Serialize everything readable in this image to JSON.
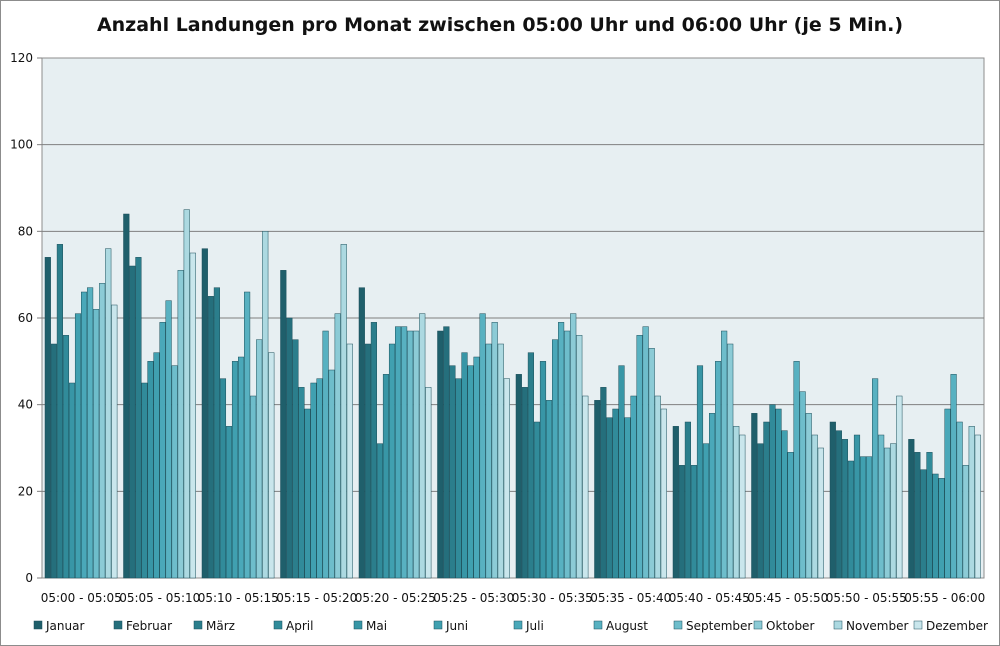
{
  "chart_data": {
    "type": "bar",
    "title": "Anzahl Landungen pro Monat zwischen 05:00 Uhr und 06:00 Uhr (je 5 Min.)",
    "xlabel": "",
    "ylabel": "",
    "ylim": [
      0,
      120
    ],
    "yticks": [
      0,
      20,
      40,
      60,
      80,
      100,
      120
    ],
    "grid": true,
    "legend_position": "bottom",
    "categories": [
      "05:00 - 05:05",
      "05:05 - 05:10",
      "05:10 - 05:15",
      "05:15 - 05:20",
      "05:20 - 05:25",
      "05:25 - 05:30",
      "05:30 - 05:35",
      "05:35 - 05:40",
      "05:40 - 05:45",
      "05:45 - 05:50",
      "05:50 - 05:55",
      "05:55 - 06:00"
    ],
    "series": [
      {
        "name": "Januar",
        "color": "#1f5f6b",
        "values": [
          74,
          84,
          76,
          71,
          67,
          57,
          47,
          41,
          35,
          38,
          36,
          32
        ]
      },
      {
        "name": "Februar",
        "color": "#256f7c",
        "values": [
          54,
          72,
          65,
          60,
          54,
          58,
          44,
          44,
          26,
          31,
          34,
          29
        ]
      },
      {
        "name": "März",
        "color": "#2b7e8c",
        "values": [
          77,
          74,
          67,
          55,
          59,
          49,
          52,
          37,
          36,
          36,
          32,
          25
        ]
      },
      {
        "name": "April",
        "color": "#318b9a",
        "values": [
          56,
          45,
          46,
          44,
          31,
          46,
          36,
          39,
          26,
          40,
          27,
          29
        ]
      },
      {
        "name": "Mai",
        "color": "#3896a6",
        "values": [
          45,
          50,
          35,
          39,
          47,
          52,
          50,
          49,
          49,
          39,
          33,
          24
        ]
      },
      {
        "name": "Juni",
        "color": "#40a0b0",
        "values": [
          61,
          52,
          50,
          45,
          54,
          49,
          41,
          37,
          31,
          34,
          28,
          23
        ]
      },
      {
        "name": "Juli",
        "color": "#4aa8b9",
        "values": [
          66,
          59,
          51,
          46,
          58,
          51,
          55,
          42,
          38,
          29,
          28,
          39
        ]
      },
      {
        "name": "August",
        "color": "#58b1c1",
        "values": [
          67,
          64,
          66,
          57,
          58,
          61,
          59,
          56,
          50,
          50,
          46,
          47
        ]
      },
      {
        "name": "September",
        "color": "#6ebdcb",
        "values": [
          62,
          49,
          42,
          48,
          57,
          54,
          57,
          58,
          57,
          43,
          33,
          36
        ]
      },
      {
        "name": "Oktober",
        "color": "#8ccbd6",
        "values": [
          68,
          71,
          55,
          61,
          57,
          59,
          61,
          53,
          54,
          38,
          30,
          26
        ]
      },
      {
        "name": "November",
        "color": "#acd9e1",
        "values": [
          76,
          85,
          80,
          77,
          61,
          54,
          56,
          42,
          35,
          33,
          31,
          35
        ]
      },
      {
        "name": "Dezember",
        "color": "#c9e6ec",
        "values": [
          63,
          75,
          52,
          54,
          44,
          46,
          42,
          39,
          33,
          30,
          42,
          33
        ]
      }
    ]
  }
}
